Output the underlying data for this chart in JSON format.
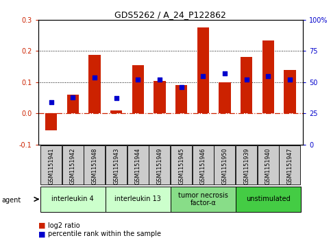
{
  "title": "GDS5262 / A_24_P122862",
  "samples": [
    "GSM1151941",
    "GSM1151942",
    "GSM1151948",
    "GSM1151943",
    "GSM1151944",
    "GSM1151949",
    "GSM1151945",
    "GSM1151946",
    "GSM1151950",
    "GSM1151939",
    "GSM1151940",
    "GSM1151947"
  ],
  "log2_ratio": [
    -0.055,
    0.06,
    0.188,
    0.01,
    0.155,
    0.105,
    0.09,
    0.275,
    0.1,
    0.18,
    0.235,
    0.14
  ],
  "percentile": [
    34,
    38,
    54,
    37,
    52,
    52,
    46,
    55,
    57,
    52,
    55,
    52
  ],
  "bar_color": "#cc2200",
  "dot_color": "#0000cc",
  "ylim_left": [
    -0.1,
    0.3
  ],
  "ylim_right": [
    0,
    100
  ],
  "yticks_left": [
    -0.1,
    0.0,
    0.1,
    0.2,
    0.3
  ],
  "yticks_right": [
    0,
    25,
    50,
    75,
    100
  ],
  "dotted_lines": [
    0.1,
    0.2
  ],
  "zero_line_color": "#cc2200",
  "group_boundaries": [
    {
      "start": 0,
      "end": 2,
      "label": "interleukin 4",
      "color": "#ccffcc"
    },
    {
      "start": 3,
      "end": 5,
      "label": "interleukin 13",
      "color": "#ccffcc"
    },
    {
      "start": 6,
      "end": 8,
      "label": "tumor necrosis\nfactor-α",
      "color": "#88dd88"
    },
    {
      "start": 9,
      "end": 11,
      "label": "unstimulated",
      "color": "#44cc44"
    }
  ],
  "legend_bar_label": "log2 ratio",
  "legend_dot_label": "percentile rank within the sample",
  "agent_label": "agent",
  "sample_box_color": "#cccccc",
  "background_color": "#ffffff"
}
